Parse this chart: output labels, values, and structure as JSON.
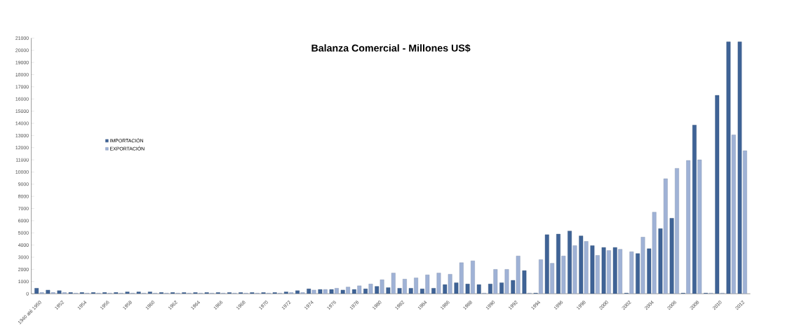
{
  "chart_data": {
    "type": "bar",
    "title": "Balanza Comercial - Millones US$",
    "categories": [
      "1940 até 1950",
      null,
      "1952",
      null,
      "1954",
      null,
      "1956",
      null,
      "1958",
      null,
      "1960",
      null,
      "1962",
      null,
      "1964",
      null,
      "1966",
      null,
      "1968",
      null,
      "1970",
      null,
      "1972",
      null,
      "1974",
      null,
      "1976",
      null,
      "1978",
      null,
      "1980",
      null,
      "1982",
      null,
      "1984",
      null,
      "1986",
      null,
      "1988",
      null,
      "1990",
      null,
      "1992",
      null,
      "1994",
      null,
      "1996",
      null,
      "1998",
      null,
      "2000",
      null,
      "2002",
      null,
      "2004",
      null,
      "2006",
      null,
      "2008",
      null,
      "2010",
      null,
      "2012"
    ],
    "series": [
      {
        "name": "IMPORTACIÓN",
        "color": "#3f6396",
        "values": [
          450,
          300,
          250,
          100,
          100,
          100,
          100,
          100,
          150,
          150,
          150,
          100,
          100,
          100,
          100,
          100,
          100,
          100,
          100,
          100,
          100,
          100,
          150,
          250,
          400,
          350,
          350,
          300,
          350,
          400,
          600,
          500,
          450,
          450,
          400,
          450,
          750,
          900,
          800,
          750,
          800,
          900,
          1100,
          1900,
          50,
          4850,
          4900,
          5150,
          4750,
          3950,
          3800,
          3800,
          50,
          3300,
          3700,
          5350,
          6200,
          50,
          13850,
          50,
          16300,
          20700,
          20700
        ]
      },
      {
        "name": "EXPORTACIÓN",
        "color": "#9fb2d6",
        "values": [
          100,
          100,
          100,
          50,
          50,
          50,
          50,
          50,
          50,
          50,
          50,
          50,
          50,
          50,
          50,
          50,
          50,
          50,
          50,
          50,
          50,
          50,
          100,
          100,
          300,
          350,
          450,
          550,
          650,
          800,
          1150,
          1700,
          1200,
          1300,
          1550,
          1700,
          1600,
          2550,
          2700,
          50,
          2000,
          2000,
          3100,
          50,
          2800,
          2500,
          3100,
          3950,
          4300,
          3150,
          3550,
          3650,
          3450,
          4650,
          6700,
          9450,
          10300,
          10950,
          11000,
          50,
          50,
          13050,
          11750
        ]
      }
    ],
    "ylim": [
      0,
      21000
    ],
    "yticks": [
      0,
      1000,
      2000,
      3000,
      4000,
      5000,
      6000,
      7000,
      8000,
      9000,
      10000,
      11000,
      12000,
      13000,
      14000,
      15000,
      16000,
      17000,
      18000,
      19000,
      20000,
      21000
    ],
    "legend": "left"
  }
}
